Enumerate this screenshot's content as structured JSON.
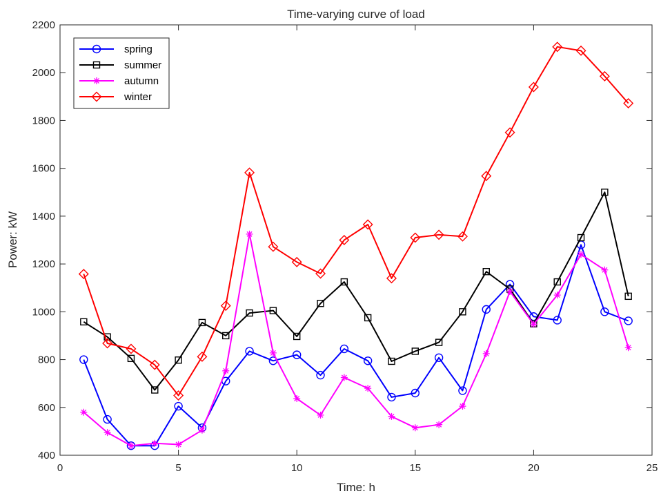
{
  "chart_data": {
    "type": "line",
    "title": "Time-varying curve of load",
    "xlabel": "Time: h",
    "ylabel": "Power: kW",
    "xlim": [
      0,
      25
    ],
    "ylim": [
      400,
      2200
    ],
    "xticks": [
      0,
      5,
      10,
      15,
      20,
      25
    ],
    "yticks": [
      400,
      600,
      800,
      1000,
      1200,
      1400,
      1600,
      1800,
      2000,
      2200
    ],
    "grid": false,
    "legend_position": "top-left",
    "x": [
      1,
      2,
      3,
      4,
      5,
      6,
      7,
      8,
      9,
      10,
      11,
      12,
      13,
      14,
      15,
      16,
      17,
      18,
      19,
      20,
      21,
      22,
      23,
      24
    ],
    "series": [
      {
        "name": "spring",
        "color": "#0000ff",
        "marker": "circle",
        "values": [
          800,
          550,
          440,
          440,
          605,
          515,
          710,
          835,
          795,
          820,
          735,
          845,
          795,
          643,
          660,
          808,
          670,
          1010,
          1115,
          980,
          965,
          1280,
          1000,
          962
        ]
      },
      {
        "name": "summer",
        "color": "#000000",
        "marker": "square",
        "values": [
          958,
          895,
          805,
          673,
          798,
          955,
          900,
          995,
          1005,
          897,
          1035,
          1125,
          975,
          793,
          835,
          872,
          1000,
          1168,
          1095,
          950,
          1125,
          1310,
          1500,
          1065
        ]
      },
      {
        "name": "autumn",
        "color": "#ff00ff",
        "marker": "star",
        "values": [
          580,
          495,
          440,
          450,
          445,
          505,
          753,
          1325,
          828,
          637,
          568,
          725,
          680,
          562,
          515,
          528,
          605,
          825,
          1085,
          948,
          1070,
          1240,
          1175,
          850
        ]
      },
      {
        "name": "winter",
        "color": "#ff0000",
        "marker": "diamond",
        "values": [
          1158,
          868,
          845,
          778,
          650,
          812,
          1025,
          1582,
          1272,
          1208,
          1160,
          1300,
          1365,
          1140,
          1310,
          1322,
          1315,
          1568,
          1750,
          1940,
          2108,
          2092,
          1985,
          1872
        ]
      }
    ]
  }
}
